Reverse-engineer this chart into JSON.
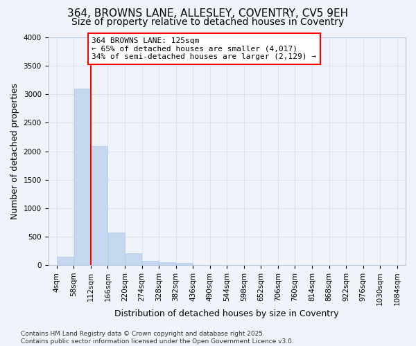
{
  "title_line1": "364, BROWNS LANE, ALLESLEY, COVENTRY, CV5 9EH",
  "title_line2": "Size of property relative to detached houses in Coventry",
  "xlabel": "Distribution of detached houses by size in Coventry",
  "ylabel": "Number of detached properties",
  "bins": [
    "4sqm",
    "58sqm",
    "112sqm",
    "166sqm",
    "220sqm",
    "274sqm",
    "328sqm",
    "382sqm",
    "436sqm",
    "490sqm",
    "544sqm",
    "598sqm",
    "652sqm",
    "706sqm",
    "760sqm",
    "814sqm",
    "868sqm",
    "922sqm",
    "976sqm",
    "1030sqm",
    "1084sqm"
  ],
  "bin_edges": [
    4,
    58,
    112,
    166,
    220,
    274,
    328,
    382,
    436,
    490,
    544,
    598,
    652,
    706,
    760,
    814,
    868,
    922,
    976,
    1030,
    1084
  ],
  "values": [
    145,
    3105,
    2090,
    575,
    205,
    75,
    45,
    35,
    0,
    0,
    0,
    0,
    0,
    0,
    0,
    0,
    0,
    0,
    0,
    0
  ],
  "bar_color": "#c5d8f0",
  "bar_edge_color": "#b0c8e8",
  "grid_color": "#d4dff0",
  "background_color": "#f0f4fa",
  "vline_x": 112,
  "vline_color": "red",
  "annotation_text": "364 BROWNS LANE: 125sqm\n← 65% of detached houses are smaller (4,017)\n34% of semi-detached houses are larger (2,129) →",
  "annotation_box_color": "white",
  "annotation_box_edge": "red",
  "ylim": [
    0,
    4000
  ],
  "yticks": [
    0,
    500,
    1000,
    1500,
    2000,
    2500,
    3000,
    3500,
    4000
  ],
  "footer_line1": "Contains HM Land Registry data © Crown copyright and database right 2025.",
  "footer_line2": "Contains public sector information licensed under the Open Government Licence v3.0.",
  "title_fontsize": 11,
  "subtitle_fontsize": 10,
  "axis_label_fontsize": 9,
  "tick_fontsize": 7.5,
  "annotation_fontsize": 8,
  "footer_fontsize": 6.5
}
